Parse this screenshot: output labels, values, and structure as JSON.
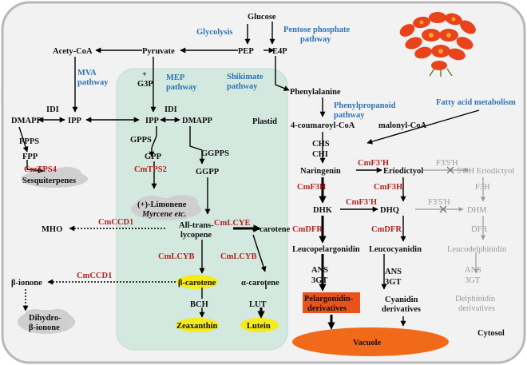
{
  "nodes": {
    "glucose": "Glucose",
    "pep": "PEP",
    "e4p": "E4P",
    "pyruvate": "Pyruvate",
    "acetyl_coa": "Acety-CoA",
    "g3p_plus": "+",
    "g3p": "G3P",
    "ipp_left": "IPP",
    "dmapp_left": "DMAPP",
    "ipp_plastid": "IPP",
    "dmapp_plastid": "DMAPP",
    "plastid": "Plastid",
    "fpp": "FPP",
    "gpp": "GPP",
    "ggpp": "GGPP",
    "sesquiterpenes": "Sesquiterpenes",
    "limonene_line1": "(+)-Limonene",
    "limonene_line2": "Myrcene etc.",
    "mho": "MHO",
    "all_trans_line1": "All-trans-",
    "all_trans_line2": "lycopene",
    "delta_carotene": "δ-carotene",
    "beta_carotene": "β-carotene",
    "alpha_carotene": "α-carotene",
    "zeaxanthin": "Zeaxanthin",
    "lutein": "Lutein",
    "beta_ionone": "β-ionone",
    "dihydro_line1": "Dihydro-",
    "dihydro_line2": "β-ionone",
    "phenylalanine": "Phenylalanine",
    "coumaroyl": "4-coumaroyl-CoA",
    "malonyl": "malonyl-CoA",
    "naringenin": "Naringenin",
    "eriodictyol": "Eriodictyol",
    "oh_eriodictyol": "5'OH Eriodictyol",
    "dhk": "DHK",
    "dhq": "DHQ",
    "dhm": "DHM",
    "leucopelargonidin": "Leucopelargonidin",
    "leucocyanidin": "Leucocyanidin",
    "leucodelphinidin": "Leucodelphinidin",
    "pelargonidin_line1": "Pelargonidin-",
    "pelargonidin_line2": "derivatives",
    "cyanidin_line1": "Cyanidin",
    "cyanidin_line2": "derivatives",
    "delphinidin_line1": "Delphinidin",
    "delphinidin_line2": "derivatives",
    "vacuole": "Vacuole",
    "cytosol": "Cytosol"
  },
  "pathways": {
    "glycolysis": "Glycolysis",
    "ppp_line1": "Pentose phosphate",
    "ppp_line2": "pathway",
    "mva_line1": "MVA",
    "mva_line2": "pathway",
    "mep_line1": "MEP",
    "mep_line2": "pathway",
    "shikimate_line1": "Shikimate",
    "shikimate_line2": "pathway",
    "phenylpropanoid_line1": "Phenylpropanoid",
    "phenylpropanoid_line2": "pathway",
    "fatty_acid": "Fatty acid metabolism"
  },
  "enzymes_black": {
    "idi_left": "IDI",
    "idi_plastid": "IDI",
    "fpps": "FPPS",
    "gpps": "GPPS",
    "ggpps": "GGPPS",
    "bch": "BCH",
    "lut": "LUT",
    "chs": "CHS",
    "chi": "CHI",
    "ans1": "ANS",
    "gt1": "3GT",
    "ans2": "ANS",
    "gt2": "3GT"
  },
  "enzymes_red": {
    "cmtps4": "CmTPS4",
    "cmtps2": "CmTPS2",
    "cmccd1_a": "CmCCD1",
    "cmccd1_b": "CmCCD1",
    "cmlcye": "CmLCYE",
    "cmlcyb_a": "CmLCYB",
    "cmlcyb_b": "CmLCYB",
    "cmf3h_a": "CmF3H",
    "cmf3h_b": "CmF3H",
    "cmf3ph_a": "CmF3'H",
    "cmf3ph_b": "CmF3'H",
    "cmdfr_a": "CmDFR",
    "cmdfr_b": "CmDFR"
  },
  "enzymes_gray": {
    "f35h_a": "F3'5'H",
    "f35h_b": "F3'5'H",
    "f3h": "F3H",
    "dfr": "DFR",
    "ans": "ANS",
    "gt": "3GT"
  },
  "colors": {
    "pathway_blue": "#2e74b5",
    "enzyme_red": "#b22222",
    "plastid_fill": "#d3e8df",
    "yellow": "#f5ea1a",
    "vacuole": "#f06a1a",
    "pelargonidin_box": "#e8521c",
    "cloud": "#cfcfcf",
    "flower": "#e8431a"
  }
}
